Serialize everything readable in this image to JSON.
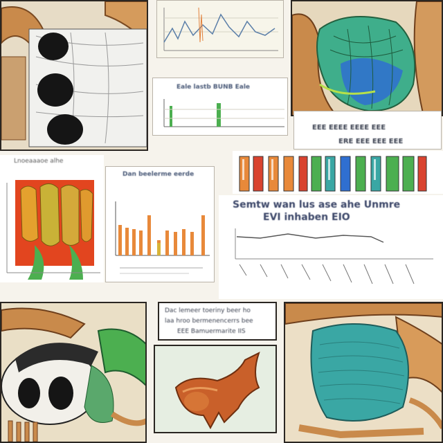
{
  "colors": {
    "paper": "#f6f3ec",
    "bone": "#c98a4b",
    "teal": "#3aa7a4",
    "green": "#4caf50",
    "orange": "#e8893a",
    "red": "#d9432f",
    "yellow": "#d8b437",
    "blue": "#2f6fd0",
    "ink": "#2a2622"
  },
  "labels": {
    "center_title": "Semtw wan lus ase ahe Unmre",
    "center_subtitle": "EVI inhaben EIO",
    "bottom_box_line1": "Dac lemeer toeriny beer ho",
    "bottom_box_line2": "laa hroo bermenencerrs bee",
    "bottom_box_line3": "EEE Bamuermarite IIS",
    "chart_header": "Eale lastb BUNB Eale",
    "banner_row1": "EEE EEEE EEEE EEE",
    "banner_row2": "ERE EEE EEE EEE",
    "bars_header": "Dan beelerme eerde",
    "left_caption": "Lnoeaaaoe alhe"
  }
}
